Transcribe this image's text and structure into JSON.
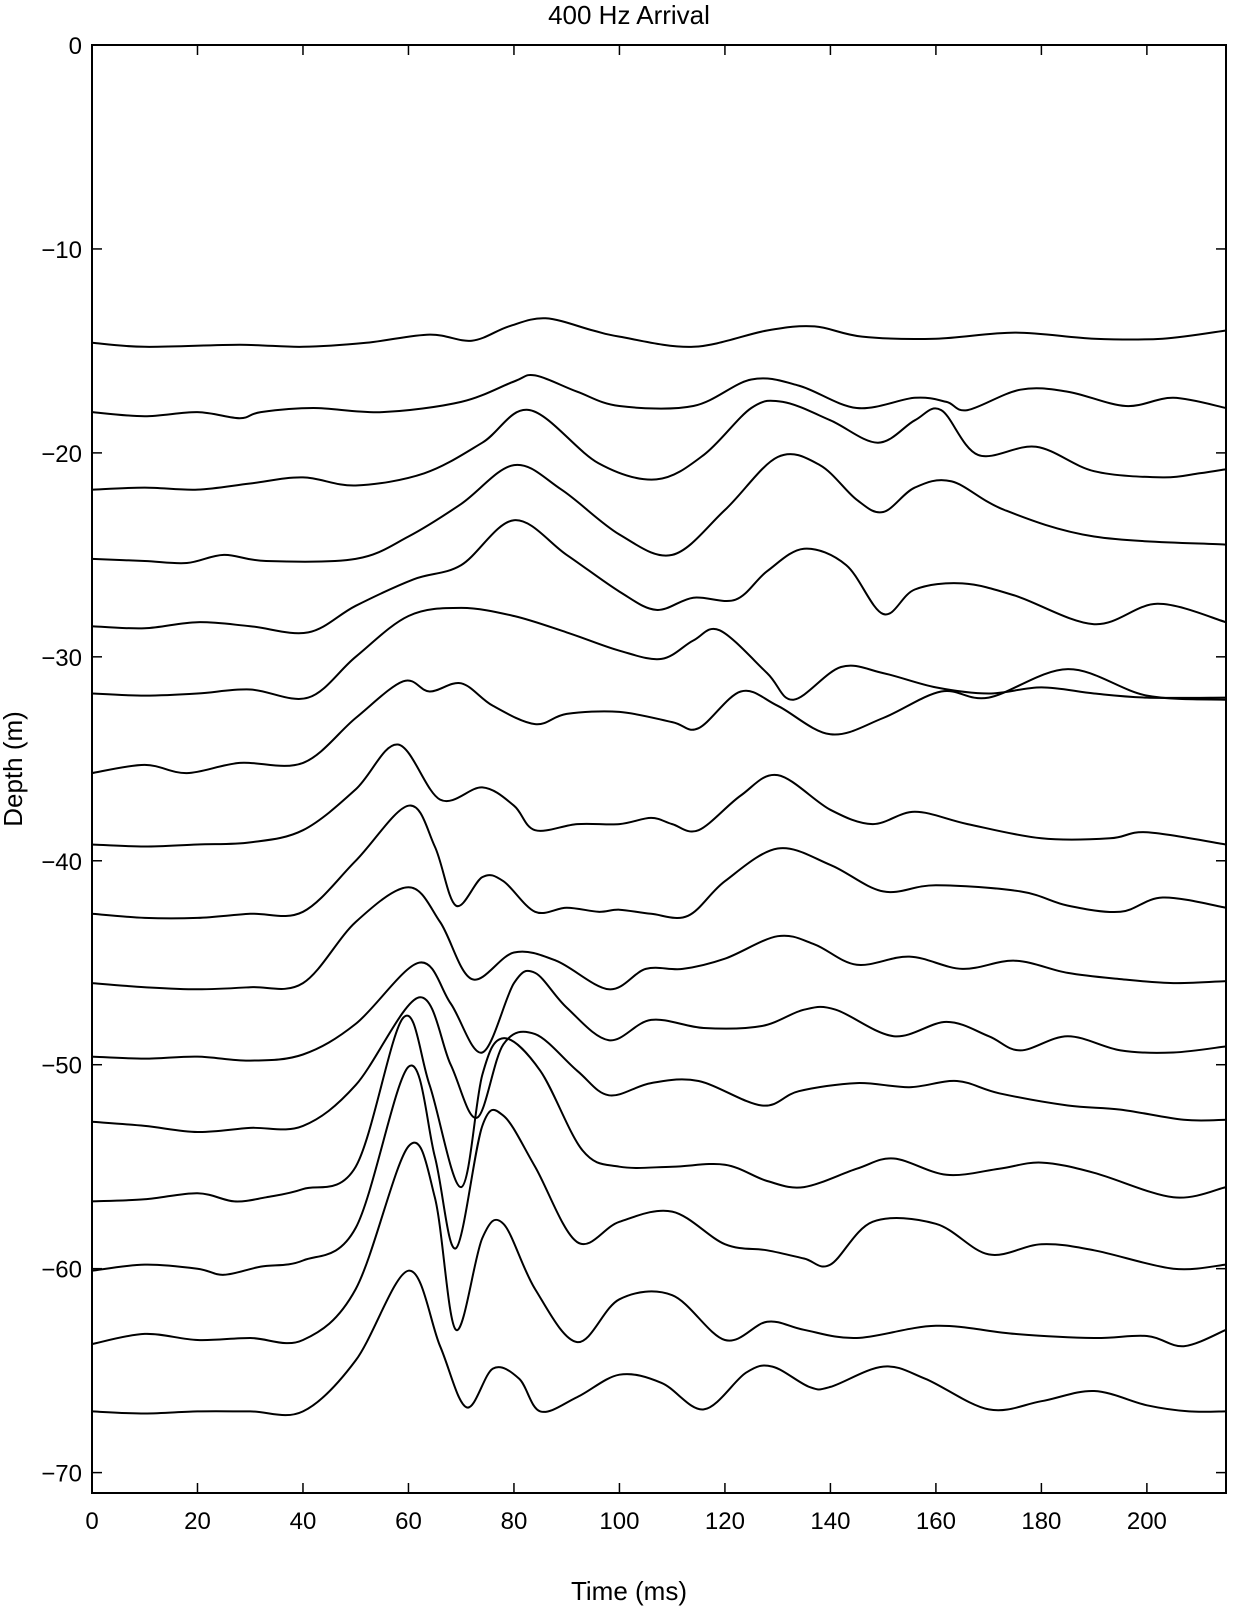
{
  "chart_data": {
    "type": "line",
    "title": "400 Hz Arrival",
    "xlabel": "Time (ms)",
    "ylabel": "Depth (m)",
    "xlim": [
      0,
      215
    ],
    "ylim": [
      -71,
      0
    ],
    "x_ticks": [
      0,
      20,
      40,
      60,
      80,
      100,
      120,
      140,
      160,
      180,
      200
    ],
    "y_ticks": [
      0,
      -10,
      -20,
      -30,
      -40,
      -50,
      -60,
      -70
    ],
    "x_tick_labels": [
      "0",
      "20",
      "40",
      "60",
      "80",
      "100",
      "120",
      "140",
      "160",
      "180",
      "200"
    ],
    "y_tick_labels": [
      "0",
      "−10",
      "−20",
      "−30",
      "−40",
      "−50",
      "−60",
      "−70"
    ],
    "grid": false,
    "legend": "none",
    "line_color": "#000000",
    "series": [
      {
        "x": [
          0,
          10,
          28,
          40,
          52,
          64,
          72,
          79,
          86,
          95,
          100,
          114,
          128,
          137,
          146,
          160,
          175,
          190,
          203,
          215
        ],
        "y": [
          -14.6,
          -14.8,
          -14.7,
          -14.8,
          -14.6,
          -14.2,
          -14.5,
          -13.8,
          -13.4,
          -14.0,
          -14.3,
          -14.8,
          -14.0,
          -13.8,
          -14.3,
          -14.4,
          -14.1,
          -14.4,
          -14.4,
          -14.0
        ]
      },
      {
        "x": [
          0,
          10,
          20,
          28,
          32,
          42,
          55,
          70,
          80,
          84,
          92,
          100,
          114,
          125,
          134,
          145,
          156,
          162,
          166,
          176,
          185,
          196,
          205,
          215
        ],
        "y": [
          -18.0,
          -18.2,
          -18.0,
          -18.3,
          -18.0,
          -17.8,
          -18.0,
          -17.5,
          -16.5,
          -16.2,
          -17.0,
          -17.7,
          -17.7,
          -16.4,
          -16.7,
          -17.8,
          -17.3,
          -17.5,
          -17.9,
          -16.9,
          -17.0,
          -17.7,
          -17.3,
          -17.8
        ]
      },
      {
        "x": [
          0,
          10,
          20,
          30,
          40,
          50,
          63,
          74,
          83,
          96,
          107,
          116,
          125,
          131,
          140,
          149,
          156,
          161,
          168,
          179,
          190,
          203,
          210,
          215
        ],
        "y": [
          -21.8,
          -21.7,
          -21.8,
          -21.5,
          -21.2,
          -21.6,
          -21.0,
          -19.5,
          -17.9,
          -20.5,
          -21.3,
          -20.1,
          -17.8,
          -17.5,
          -18.4,
          -19.5,
          -18.4,
          -17.9,
          -20.1,
          -19.7,
          -20.9,
          -21.2,
          -21.0,
          -20.8
        ]
      },
      {
        "x": [
          0,
          10,
          18,
          25,
          33,
          50,
          60,
          70,
          80,
          89,
          100,
          110,
          120,
          130,
          138,
          145,
          150,
          156,
          163,
          173,
          190,
          215
        ],
        "y": [
          -25.2,
          -25.3,
          -25.4,
          -25.0,
          -25.3,
          -25.2,
          -24.1,
          -22.5,
          -20.6,
          -21.8,
          -24.0,
          -25.0,
          -22.8,
          -20.2,
          -20.6,
          -22.3,
          -22.9,
          -21.7,
          -21.4,
          -22.8,
          -24.1,
          -24.5
        ]
      },
      {
        "x": [
          0,
          10,
          20,
          30,
          41,
          50,
          61,
          70,
          80,
          90,
          100,
          107,
          114,
          122,
          128,
          135,
          143,
          150,
          156,
          165,
          175,
          190,
          202,
          215
        ],
        "y": [
          -28.5,
          -28.6,
          -28.3,
          -28.5,
          -28.8,
          -27.5,
          -26.2,
          -25.5,
          -23.3,
          -25.0,
          -26.8,
          -27.7,
          -27.1,
          -27.2,
          -25.8,
          -24.7,
          -25.5,
          -27.9,
          -26.7,
          -26.4,
          -27.0,
          -28.4,
          -27.4,
          -28.3
        ]
      },
      {
        "x": [
          0,
          10,
          20,
          30,
          41,
          50,
          60,
          70,
          80,
          90,
          100,
          108,
          114,
          119,
          128,
          133,
          142,
          150,
          160,
          170,
          180,
          190,
          200,
          215
        ],
        "y": [
          -31.8,
          -31.9,
          -31.8,
          -31.6,
          -32.0,
          -30.0,
          -28.0,
          -27.6,
          -28.0,
          -28.8,
          -29.7,
          -30.1,
          -29.2,
          -28.7,
          -30.8,
          -32.1,
          -30.5,
          -30.8,
          -31.5,
          -31.8,
          -31.5,
          -31.8,
          -32.0,
          -32.0
        ]
      },
      {
        "x": [
          0,
          10,
          18,
          28,
          40,
          50,
          59,
          64,
          70,
          76,
          84,
          90,
          100,
          110,
          115,
          123,
          130,
          140,
          150,
          161,
          170,
          185,
          200,
          215
        ],
        "y": [
          -35.7,
          -35.3,
          -35.7,
          -35.2,
          -35.2,
          -33.0,
          -31.2,
          -31.7,
          -31.3,
          -32.4,
          -33.3,
          -32.8,
          -32.7,
          -33.2,
          -33.5,
          -31.7,
          -32.4,
          -33.8,
          -33.0,
          -31.7,
          -32.0,
          -30.6,
          -31.9,
          -32.1
        ]
      },
      {
        "x": [
          0,
          10,
          20,
          30,
          40,
          50,
          58,
          66,
          74,
          80,
          84,
          92,
          100,
          106,
          110,
          115,
          123,
          130,
          140,
          148,
          156,
          166,
          180,
          193,
          200,
          215
        ],
        "y": [
          -39.2,
          -39.3,
          -39.2,
          -39.1,
          -38.5,
          -36.5,
          -34.3,
          -37.0,
          -36.4,
          -37.3,
          -38.5,
          -38.2,
          -38.2,
          -37.9,
          -38.2,
          -38.5,
          -36.8,
          -35.8,
          -37.5,
          -38.2,
          -37.6,
          -38.2,
          -38.9,
          -38.9,
          -38.6,
          -39.2
        ]
      },
      {
        "x": [
          0,
          10,
          20,
          30,
          40,
          50,
          60,
          65,
          69,
          74,
          78,
          84,
          90,
          96,
          100,
          106,
          113,
          120,
          130,
          140,
          150,
          160,
          176,
          185,
          195,
          203,
          215
        ],
        "y": [
          -42.6,
          -42.8,
          -42.8,
          -42.6,
          -42.5,
          -40.0,
          -37.3,
          -39.3,
          -42.2,
          -40.8,
          -41.0,
          -42.5,
          -42.3,
          -42.5,
          -42.4,
          -42.6,
          -42.7,
          -41.0,
          -39.4,
          -40.2,
          -41.5,
          -41.2,
          -41.5,
          -42.2,
          -42.5,
          -41.8,
          -42.3
        ]
      },
      {
        "x": [
          0,
          10,
          20,
          30,
          40,
          50,
          60,
          66,
          72,
          80,
          88,
          98,
          105,
          112,
          120,
          130,
          137,
          145,
          155,
          165,
          175,
          185,
          195,
          205,
          215
        ],
        "y": [
          -46.0,
          -46.2,
          -46.3,
          -46.2,
          -46.0,
          -43.0,
          -41.3,
          -43.0,
          -45.8,
          -44.5,
          -44.9,
          -46.3,
          -45.3,
          -45.3,
          -44.8,
          -43.7,
          -44.1,
          -45.1,
          -44.7,
          -45.3,
          -44.9,
          -45.5,
          -45.8,
          -46.0,
          -45.9
        ]
      },
      {
        "x": [
          0,
          10,
          20,
          30,
          40,
          50,
          62,
          68,
          74,
          80,
          84,
          90,
          98,
          106,
          116,
          127,
          135,
          141,
          152,
          162,
          170,
          176,
          185,
          195,
          205,
          215
        ],
        "y": [
          -49.6,
          -49.7,
          -49.6,
          -49.8,
          -49.5,
          -48.0,
          -45.0,
          -47.0,
          -49.4,
          -46.0,
          -45.5,
          -47.2,
          -48.8,
          -47.8,
          -48.2,
          -48.1,
          -47.3,
          -47.3,
          -48.6,
          -47.9,
          -48.6,
          -49.3,
          -48.6,
          -49.3,
          -49.4,
          -49.1
        ]
      },
      {
        "x": [
          0,
          10,
          20,
          30,
          40,
          50,
          62,
          68,
          73,
          78,
          84,
          92,
          98,
          106,
          115,
          127,
          134,
          145,
          155,
          164,
          172,
          185,
          195,
          207,
          215
        ],
        "y": [
          -52.8,
          -53.0,
          -53.3,
          -53.1,
          -53.0,
          -51.0,
          -46.7,
          -50.0,
          -52.6,
          -49.0,
          -48.5,
          -50.3,
          -51.5,
          -50.9,
          -50.8,
          -52.0,
          -51.3,
          -50.9,
          -51.1,
          -50.8,
          -51.4,
          -52.0,
          -52.2,
          -52.7,
          -52.7
        ]
      },
      {
        "x": [
          0,
          10,
          20,
          27,
          33,
          40,
          50,
          59,
          64,
          70,
          74,
          78,
          85,
          93,
          100,
          110,
          120,
          128,
          135,
          145,
          152,
          162,
          172,
          180,
          190,
          205,
          215
        ],
        "y": [
          -56.7,
          -56.6,
          -56.3,
          -56.7,
          -56.5,
          -56.1,
          -55.0,
          -47.7,
          -51.0,
          -56.0,
          -50.5,
          -48.7,
          -50.3,
          -54.2,
          -55.0,
          -55.0,
          -54.9,
          -55.7,
          -56.0,
          -55.1,
          -54.6,
          -55.4,
          -55.1,
          -54.8,
          -55.3,
          -56.5,
          -56.0
        ]
      },
      {
        "x": [
          0,
          10,
          20,
          25,
          32,
          40,
          50,
          60,
          65,
          69,
          74,
          78,
          84,
          92,
          100,
          110,
          120,
          128,
          135,
          140,
          148,
          160,
          170,
          180,
          190,
          205,
          215
        ],
        "y": [
          -60.1,
          -59.8,
          -60.0,
          -60.3,
          -59.9,
          -59.6,
          -58.0,
          -50.1,
          -54.5,
          -59.0,
          -53.0,
          -52.5,
          -55.0,
          -58.7,
          -57.7,
          -57.2,
          -58.8,
          -59.1,
          -59.5,
          -59.8,
          -57.7,
          -57.8,
          -59.3,
          -58.8,
          -59.1,
          -60.0,
          -59.8
        ]
      },
      {
        "x": [
          0,
          10,
          20,
          30,
          40,
          50,
          60,
          65,
          69,
          74,
          78,
          84,
          92,
          100,
          110,
          120,
          128,
          135,
          145,
          160,
          175,
          190,
          200,
          207,
          215
        ],
        "y": [
          -63.7,
          -63.2,
          -63.5,
          -63.4,
          -63.5,
          -61.0,
          -54.0,
          -56.5,
          -63.0,
          -58.5,
          -57.8,
          -61.0,
          -63.6,
          -61.5,
          -61.3,
          -63.5,
          -62.6,
          -63.0,
          -63.4,
          -62.8,
          -63.2,
          -63.4,
          -63.3,
          -63.8,
          -63.0
        ]
      },
      {
        "x": [
          0,
          10,
          20,
          30,
          40,
          50,
          60,
          66,
          71,
          76,
          81,
          85,
          92,
          100,
          108,
          116,
          124,
          129,
          136,
          140,
          150,
          158,
          170,
          180,
          190,
          200,
          208,
          215
        ],
        "y": [
          -67.0,
          -67.1,
          -67.0,
          -67.0,
          -67.0,
          -64.5,
          -60.1,
          -63.8,
          -66.8,
          -64.9,
          -65.4,
          -67.0,
          -66.3,
          -65.2,
          -65.6,
          -66.9,
          -65.1,
          -64.8,
          -65.8,
          -65.8,
          -64.8,
          -65.4,
          -66.9,
          -66.5,
          -66.0,
          -66.7,
          -67.0,
          -67.0
        ]
      }
    ]
  }
}
